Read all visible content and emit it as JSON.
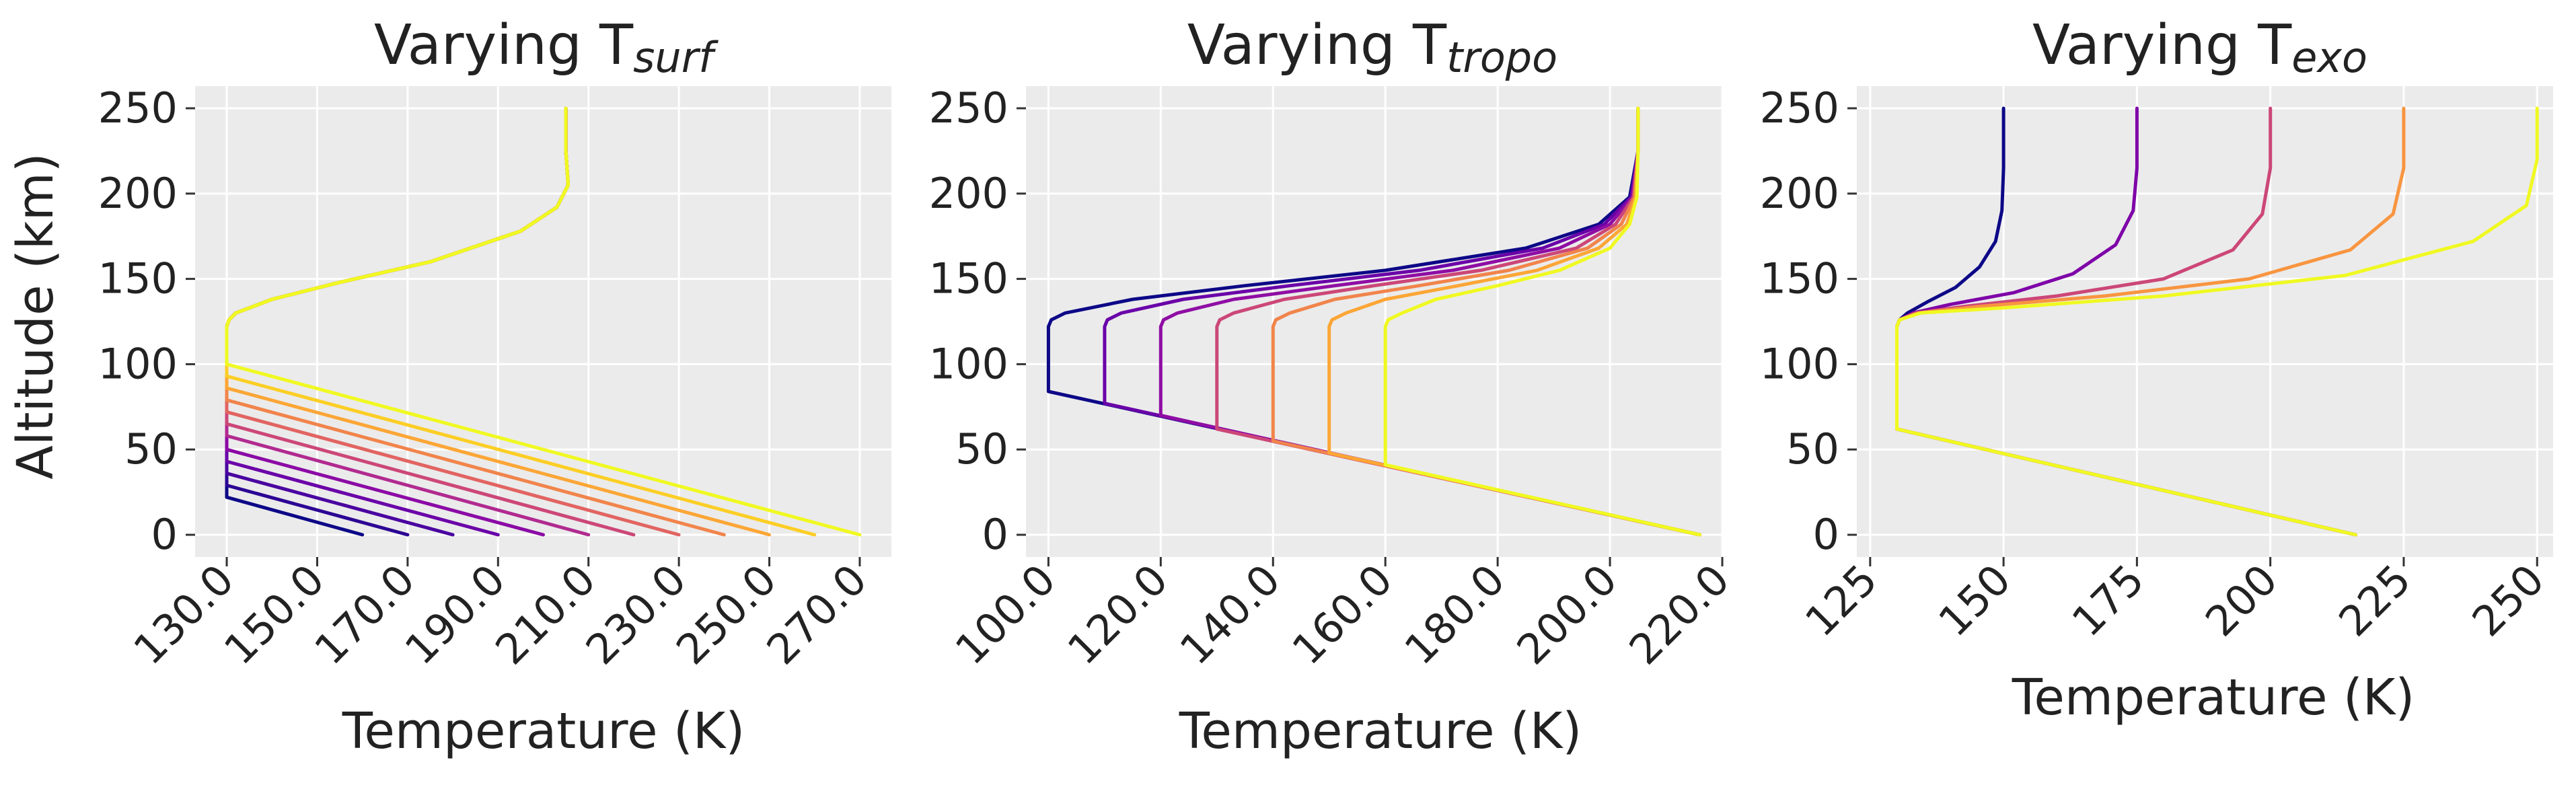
{
  "chart_data": [
    {
      "type": "line",
      "title": "Varying T",
      "title_subscript": "surf",
      "xlabel": "Temperature (K)",
      "ylabel": "Altitude (km)",
      "xlim": [
        123,
        277
      ],
      "ylim": [
        -13,
        263
      ],
      "xticks": [
        130,
        150,
        170,
        190,
        210,
        230,
        250,
        270
      ],
      "xtick_labels": [
        "130.0",
        "150.0",
        "170.0",
        "190.0",
        "210.0",
        "230.0",
        "250.0",
        "270.0"
      ],
      "yticks": [
        0,
        50,
        100,
        150,
        200,
        250
      ],
      "ytick_labels": [
        "0",
        "50",
        "100",
        "150",
        "200",
        "250"
      ],
      "grid": true,
      "series": [
        {
          "color": "#0d0887",
          "x": [
            160,
            130,
            130,
            130.5,
            132,
            140,
            155,
            175,
            195,
            203,
            205.5,
            205,
            205
          ],
          "y": [
            0,
            22,
            122,
            126,
            130,
            138,
            148,
            160,
            178,
            192,
            205,
            225,
            250
          ]
        },
        {
          "color": "#2c0594",
          "x": [
            170,
            130,
            130,
            130.5,
            132,
            140,
            155,
            175,
            195,
            203,
            205.5,
            205,
            205
          ],
          "y": [
            0,
            29,
            122,
            126,
            130,
            138,
            148,
            160,
            178,
            192,
            205,
            225,
            250
          ]
        },
        {
          "color": "#4903a0",
          "x": [
            180,
            130,
            130,
            130.5,
            132,
            140,
            155,
            175,
            195,
            203,
            205.5,
            205,
            205
          ],
          "y": [
            0,
            36,
            122,
            126,
            130,
            138,
            148,
            160,
            178,
            192,
            205,
            225,
            250
          ]
        },
        {
          "color": "#6a00a8",
          "x": [
            190,
            130,
            130,
            130.5,
            132,
            140,
            155,
            175,
            195,
            203,
            205.5,
            205,
            205
          ],
          "y": [
            0,
            43,
            122,
            126,
            130,
            138,
            148,
            160,
            178,
            192,
            205,
            225,
            250
          ]
        },
        {
          "color": "#8b0aa5",
          "x": [
            200,
            130,
            130,
            130.5,
            132,
            140,
            155,
            175,
            195,
            203,
            205.5,
            205,
            205
          ],
          "y": [
            0,
            50,
            122,
            126,
            130,
            138,
            148,
            160,
            178,
            192,
            205,
            225,
            250
          ]
        },
        {
          "color": "#b12a90",
          "x": [
            210,
            130,
            130,
            130.5,
            132,
            140,
            155,
            175,
            195,
            203,
            205.5,
            205,
            205
          ],
          "y": [
            0,
            58,
            122,
            126,
            130,
            138,
            148,
            160,
            178,
            192,
            205,
            225,
            250
          ]
        },
        {
          "color": "#cc4778",
          "x": [
            220,
            130,
            130,
            130.5,
            132,
            140,
            155,
            175,
            195,
            203,
            205.5,
            205,
            205
          ],
          "y": [
            0,
            65,
            122,
            126,
            130,
            138,
            148,
            160,
            178,
            192,
            205,
            225,
            250
          ]
        },
        {
          "color": "#e16462",
          "x": [
            230,
            130,
            130,
            130.5,
            132,
            140,
            155,
            175,
            195,
            203,
            205.5,
            205,
            205
          ],
          "y": [
            0,
            72,
            122,
            126,
            130,
            138,
            148,
            160,
            178,
            192,
            205,
            225,
            250
          ]
        },
        {
          "color": "#f1844b",
          "x": [
            240,
            130,
            130,
            130.5,
            132,
            140,
            155,
            175,
            195,
            203,
            205.5,
            205,
            205
          ],
          "y": [
            0,
            79,
            122,
            126,
            130,
            138,
            148,
            160,
            178,
            192,
            205,
            225,
            250
          ]
        },
        {
          "color": "#fca636",
          "x": [
            250,
            130,
            130,
            130.5,
            132,
            140,
            155,
            175,
            195,
            203,
            205.5,
            205,
            205
          ],
          "y": [
            0,
            86,
            122,
            126,
            130,
            138,
            148,
            160,
            178,
            192,
            205,
            225,
            250
          ]
        },
        {
          "color": "#fcce25",
          "x": [
            260,
            130,
            130,
            130.5,
            132,
            140,
            155,
            175,
            195,
            203,
            205.5,
            205,
            205
          ],
          "y": [
            0,
            93,
            122,
            126,
            130,
            138,
            148,
            160,
            178,
            192,
            205,
            225,
            250
          ]
        },
        {
          "color": "#f0f921",
          "x": [
            270,
            130,
            130,
            130.5,
            132,
            140,
            155,
            175,
            195,
            203,
            205.5,
            205,
            205
          ],
          "y": [
            0,
            100,
            122,
            126,
            130,
            138,
            148,
            160,
            178,
            192,
            205,
            225,
            250
          ]
        }
      ]
    },
    {
      "type": "line",
      "title": "Varying T",
      "title_subscript": "tropo",
      "xlabel": "Temperature (K)",
      "ylabel": "",
      "xlim": [
        96,
        220
      ],
      "ylim": [
        -13,
        263
      ],
      "xticks": [
        100,
        120,
        140,
        160,
        180,
        200,
        220
      ],
      "xtick_labels": [
        "100.0",
        "120.0",
        "140.0",
        "160.0",
        "180.0",
        "200.0",
        "220.0"
      ],
      "yticks": [
        0,
        50,
        100,
        150,
        200,
        250
      ],
      "ytick_labels": [
        "0",
        "50",
        "100",
        "150",
        "200",
        "250"
      ],
      "grid": true,
      "series": [
        {
          "color": "#0d0887",
          "x": [
            216,
            100,
            100,
            100.5,
            103,
            115,
            135,
            160,
            185,
            198,
            203.5,
            205,
            205
          ],
          "y": [
            0,
            84,
            122,
            126,
            130,
            138,
            146,
            155,
            168,
            182,
            198,
            225,
            250
          ]
        },
        {
          "color": "#6a00a8",
          "x": [
            216,
            110,
            110,
            110.5,
            113,
            124,
            143,
            166,
            188,
            199,
            203.8,
            205,
            205
          ],
          "y": [
            0,
            77,
            122,
            126,
            130,
            138,
            146,
            155,
            168,
            182,
            198,
            225,
            250
          ]
        },
        {
          "color": "#8f0da4",
          "x": [
            216,
            120,
            120,
            120.5,
            123,
            133,
            151,
            172,
            191,
            200,
            204,
            205,
            205
          ],
          "y": [
            0,
            70,
            122,
            126,
            130,
            138,
            146,
            155,
            168,
            182,
            198,
            225,
            250
          ]
        },
        {
          "color": "#cc4778",
          "x": [
            216,
            130,
            130,
            130.5,
            133,
            142,
            158,
            177,
            194,
            201,
            204.2,
            205,
            205
          ],
          "y": [
            0,
            62,
            122,
            126,
            130,
            138,
            146,
            155,
            168,
            182,
            198,
            225,
            250
          ]
        },
        {
          "color": "#f1844b",
          "x": [
            216,
            140,
            140,
            140.5,
            143,
            151,
            166,
            182,
            196,
            202,
            204.4,
            205,
            205
          ],
          "y": [
            0,
            55,
            122,
            126,
            130,
            138,
            146,
            155,
            168,
            182,
            198,
            225,
            250
          ]
        },
        {
          "color": "#fca636",
          "x": [
            216,
            150,
            150,
            150.5,
            153,
            160,
            173,
            187,
            198,
            203,
            204.6,
            205,
            205
          ],
          "y": [
            0,
            48,
            122,
            126,
            130,
            138,
            146,
            155,
            168,
            182,
            198,
            225,
            250
          ]
        },
        {
          "color": "#f0f921",
          "x": [
            216,
            160,
            160,
            160.5,
            163,
            169,
            180,
            191,
            200,
            203.5,
            204.8,
            205,
            205
          ],
          "y": [
            0,
            41,
            122,
            126,
            130,
            138,
            146,
            155,
            168,
            182,
            198,
            225,
            250
          ]
        }
      ]
    },
    {
      "type": "line",
      "title": "Varying T",
      "title_subscript": "exo",
      "xlabel": "Temperature (K)",
      "ylabel": "",
      "xlim": [
        122.5,
        253
      ],
      "ylim": [
        -13,
        263
      ],
      "xticks": [
        125,
        150,
        175,
        200,
        225,
        250
      ],
      "xtick_labels": [
        "125",
        "150",
        "175",
        "200",
        "225",
        "250"
      ],
      "yticks": [
        0,
        50,
        100,
        150,
        200,
        250
      ],
      "ytick_labels": [
        "0",
        "50",
        "100",
        "150",
        "200",
        "250"
      ],
      "grid": true,
      "series": [
        {
          "color": "#0d0887",
          "x": [
            216,
            130,
            130,
            130.5,
            132,
            136,
            141,
            145.5,
            148.5,
            149.7,
            150,
            150
          ],
          "y": [
            0,
            62,
            122,
            126,
            130,
            137,
            145,
            157,
            172,
            190,
            215,
            250
          ]
        },
        {
          "color": "#7e03a8",
          "x": [
            216,
            130,
            130,
            130.5,
            133,
            140,
            152,
            163,
            171,
            174.3,
            175,
            175
          ],
          "y": [
            0,
            62,
            122,
            126,
            130,
            135,
            142,
            153,
            170,
            190,
            215,
            250
          ]
        },
        {
          "color": "#cc4778",
          "x": [
            216,
            130,
            130,
            130.5,
            133.5,
            143,
            160,
            180,
            193,
            198.5,
            200,
            200
          ],
          "y": [
            0,
            62,
            122,
            126,
            130,
            134,
            140,
            150,
            167,
            188,
            215,
            250
          ]
        },
        {
          "color": "#f89540",
          "x": [
            216,
            130,
            130,
            130.5,
            134,
            146,
            169,
            196,
            215,
            223,
            225,
            225
          ],
          "y": [
            0,
            62,
            122,
            126,
            130,
            134,
            140,
            150,
            167,
            188,
            215,
            250
          ]
        },
        {
          "color": "#f0f921",
          "x": [
            216,
            130,
            130,
            130.5,
            134.5,
            150,
            180,
            214,
            238,
            248,
            250,
            250
          ],
          "y": [
            0,
            62,
            122,
            126,
            130,
            133,
            140,
            152,
            172,
            193,
            220,
            250
          ]
        }
      ]
    }
  ]
}
